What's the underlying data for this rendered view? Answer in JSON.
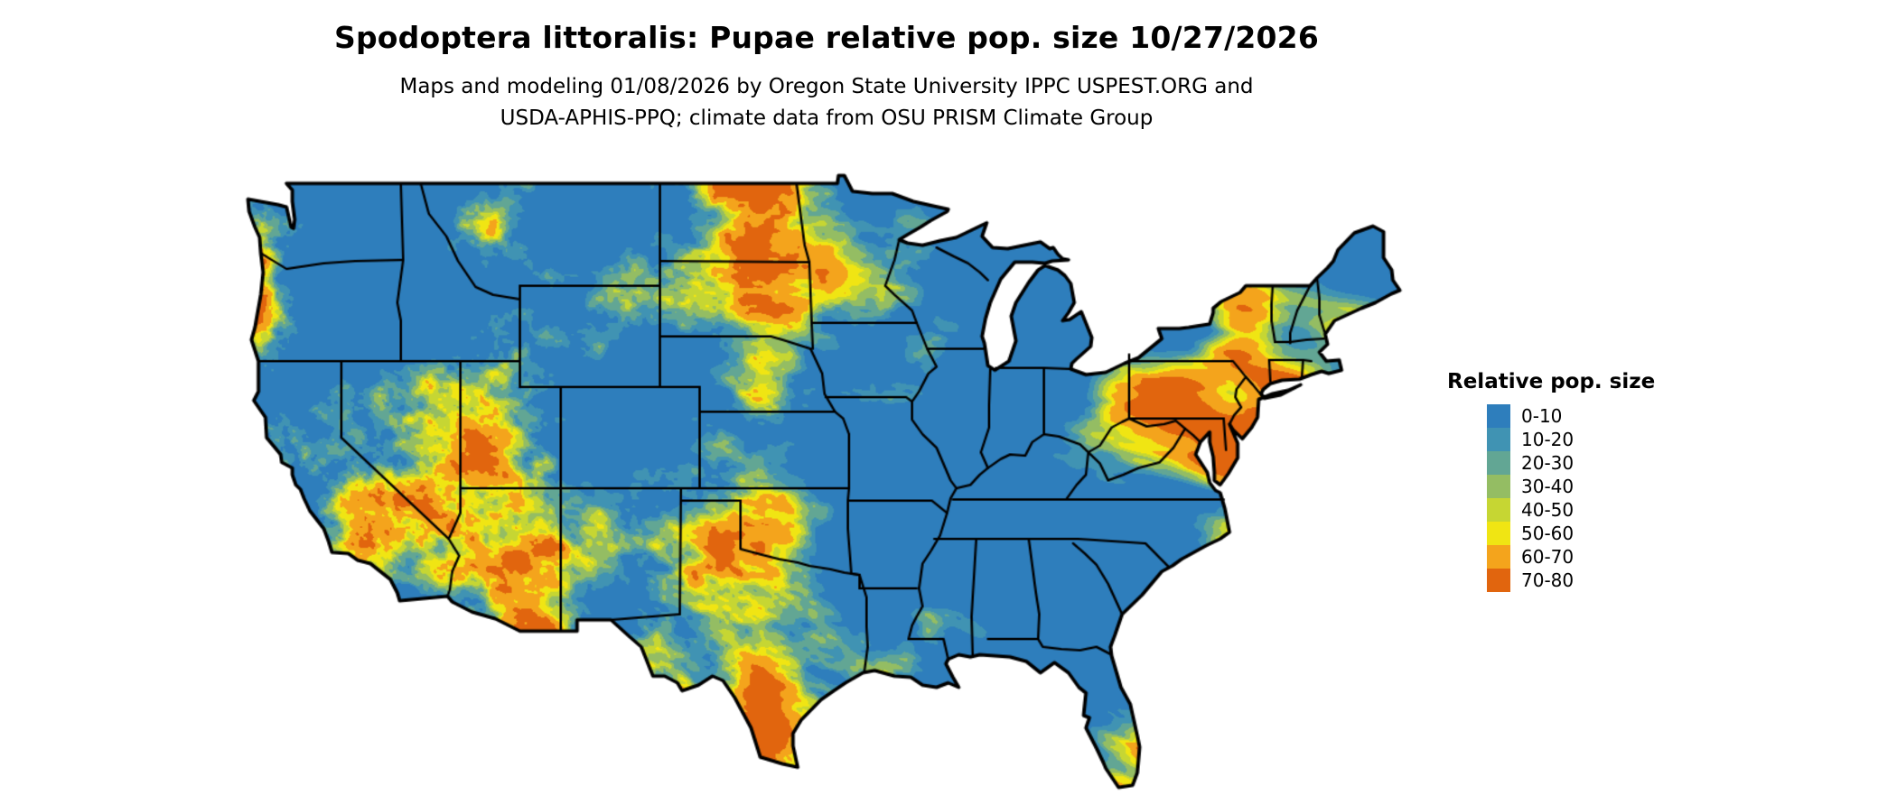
{
  "header": {
    "title": "Spodoptera littoralis: Pupae relative pop. size 10/27/2026",
    "subtitle_line1": "Maps and modeling 01/08/2026 by Oregon State University IPPC USPEST.ORG and",
    "subtitle_line2": "USDA-APHIS-PPQ; climate data from OSU PRISM Climate Group"
  },
  "map": {
    "region": "conterminous United States",
    "boundary_color": "#000000",
    "background_color": "#ffffff"
  },
  "legend": {
    "title": "Relative pop. size",
    "entries": [
      {
        "label": "0-10",
        "color": "#2e7ebc"
      },
      {
        "label": "10-20",
        "color": "#4093b3"
      },
      {
        "label": "20-30",
        "color": "#62a694"
      },
      {
        "label": "30-40",
        "color": "#94bd63"
      },
      {
        "label": "40-50",
        "color": "#c6d633"
      },
      {
        "label": "50-60",
        "color": "#f0e513"
      },
      {
        "label": "60-70",
        "color": "#f4a41c"
      },
      {
        "label": "70-80",
        "color": "#e1650e"
      }
    ]
  }
}
